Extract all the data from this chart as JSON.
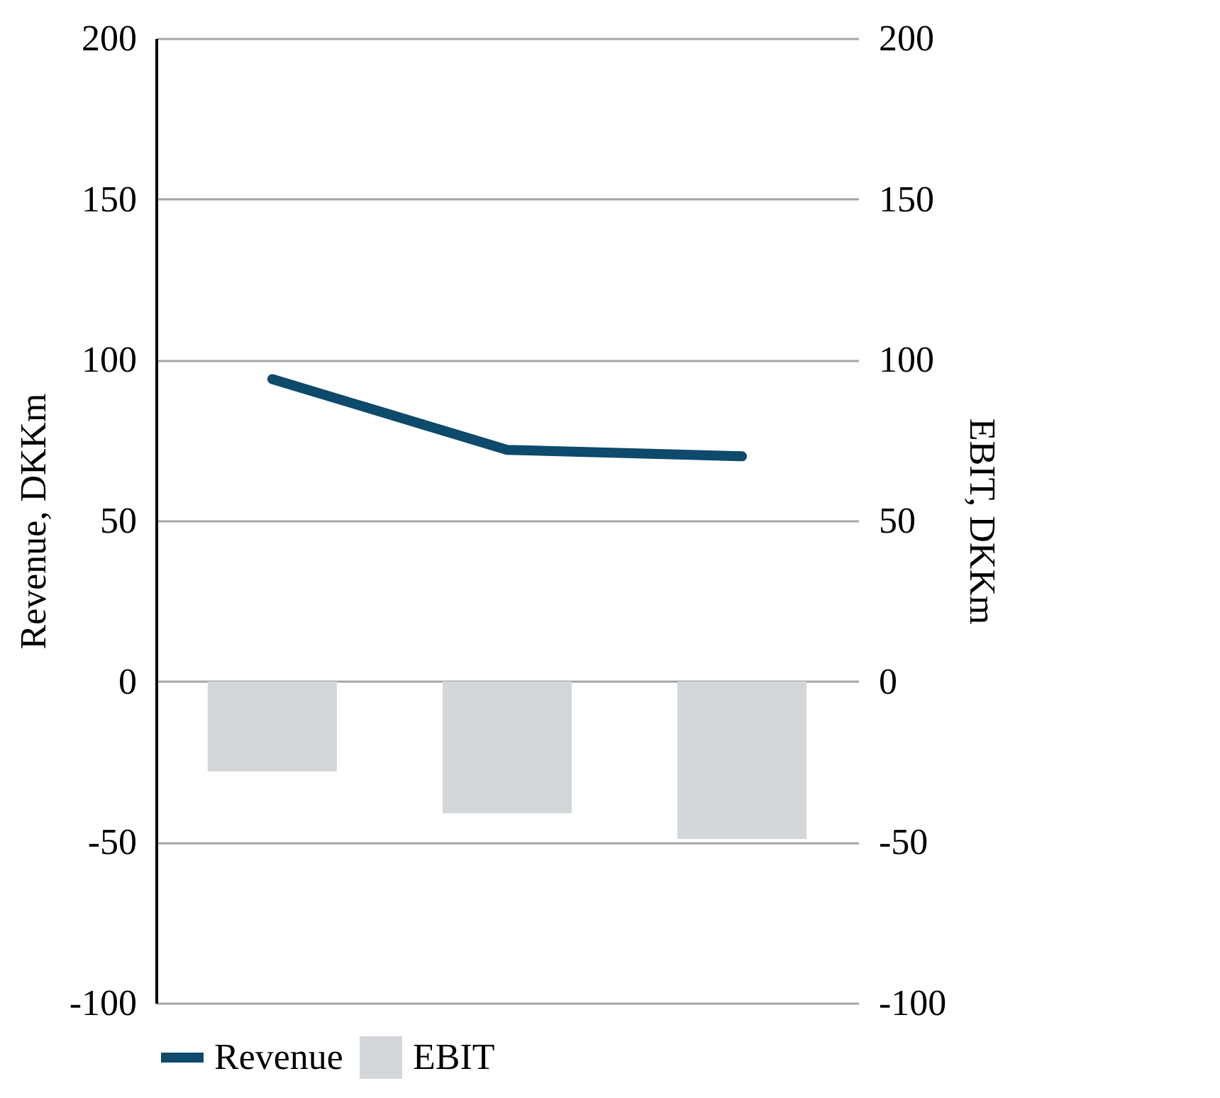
{
  "chart_data": {
    "type": "bar",
    "categories": [
      null,
      null,
      null
    ],
    "series": [
      {
        "name": "Revenue",
        "type": "line",
        "axis": "y",
        "color": "#0d4a6b",
        "values": [
          94,
          72,
          70
        ]
      },
      {
        "name": "EBIT",
        "axis": "y2",
        "color": "#d3d7da",
        "values": [
          -28,
          -41,
          -49
        ]
      }
    ],
    "ylabel": "Revenue,  DKKm",
    "y2label": "EBIT, DKKm",
    "ylim": [
      -100,
      200
    ],
    "yticks": [
      -100,
      -50,
      0,
      50,
      100,
      150,
      200
    ],
    "y2lim": [
      -100,
      200
    ],
    "y2ticks": [
      -100,
      -50,
      0,
      50,
      100,
      150,
      200
    ],
    "grid": "y",
    "legend": "bottom",
    "line_style": "solid",
    "marker": "none"
  }
}
